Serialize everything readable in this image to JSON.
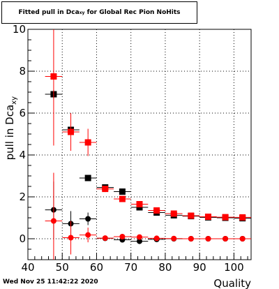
{
  "title": {
    "prefix": "Fitted pull in Dca",
    "subscript": "xy",
    "suffix": " for Global Rec Pion NoHits"
  },
  "timestamp": "Wed Nov 25 11:42:22 2020",
  "colors": {
    "series_black": "#000000",
    "series_red": "#ff0000",
    "grid": "#000000",
    "background": "#ffffff"
  },
  "chart_data": {
    "type": "scatter",
    "xlabel": "Quality",
    "ylabel_prefix": "pull in Dca",
    "ylabel_subscript": "xy",
    "xlim": [
      40,
      105
    ],
    "ylim": [
      -1,
      10
    ],
    "xticks": [
      40,
      50,
      60,
      70,
      80,
      90,
      100
    ],
    "yticks": [
      0,
      2,
      4,
      6,
      8,
      10
    ],
    "grid": true,
    "x_error": 2.5,
    "series": [
      {
        "color": "black",
        "marker": "square",
        "points": [
          {
            "x": 47.5,
            "y": 6.9,
            "yerr": 0.2
          },
          {
            "x": 52.5,
            "y": 5.2,
            "yerr": 0.15
          },
          {
            "x": 57.5,
            "y": 2.9,
            "yerr": 0.12
          },
          {
            "x": 62.5,
            "y": 2.45,
            "yerr": 0.1
          },
          {
            "x": 67.5,
            "y": 2.25,
            "yerr": 0.1
          },
          {
            "x": 72.5,
            "y": 1.5,
            "yerr": 0.08
          },
          {
            "x": 77.5,
            "y": 1.25,
            "yerr": 0.06
          },
          {
            "x": 82.5,
            "y": 1.12,
            "yerr": 0.05
          },
          {
            "x": 87.5,
            "y": 1.08,
            "yerr": 0.04
          },
          {
            "x": 92.5,
            "y": 1.02,
            "yerr": 0.04
          },
          {
            "x": 97.5,
            "y": 1.0,
            "yerr": 0.04
          },
          {
            "x": 102.5,
            "y": 0.98,
            "yerr": 0.04
          }
        ]
      },
      {
        "color": "red",
        "marker": "square",
        "points": [
          {
            "x": 47.5,
            "y": 7.75,
            "yerr": 3.3
          },
          {
            "x": 52.5,
            "y": 5.1,
            "yerr": 0.9
          },
          {
            "x": 57.5,
            "y": 4.6,
            "yerr": 0.65
          },
          {
            "x": 62.5,
            "y": 2.38,
            "yerr": 0.15
          },
          {
            "x": 67.5,
            "y": 1.9,
            "yerr": 0.1
          },
          {
            "x": 72.5,
            "y": 1.65,
            "yerr": 0.08
          },
          {
            "x": 77.5,
            "y": 1.35,
            "yerr": 0.06
          },
          {
            "x": 82.5,
            "y": 1.2,
            "yerr": 0.05
          },
          {
            "x": 87.5,
            "y": 1.1,
            "yerr": 0.04
          },
          {
            "x": 92.5,
            "y": 1.05,
            "yerr": 0.04
          },
          {
            "x": 97.5,
            "y": 1.03,
            "yerr": 0.04
          },
          {
            "x": 102.5,
            "y": 1.02,
            "yerr": 0.04
          }
        ]
      },
      {
        "color": "black",
        "marker": "circle",
        "points": [
          {
            "x": 47.5,
            "y": 1.38,
            "yerr": 1.35
          },
          {
            "x": 52.5,
            "y": 0.72,
            "yerr": 0.6
          },
          {
            "x": 57.5,
            "y": 0.95,
            "yerr": 0.3
          },
          {
            "x": 62.5,
            "y": 0.02,
            "yerr": 0.1
          },
          {
            "x": 67.5,
            "y": -0.05,
            "yerr": 0.08
          },
          {
            "x": 72.5,
            "y": -0.12,
            "yerr": 0.06
          },
          {
            "x": 77.5,
            "y": -0.03,
            "yerr": 0.04
          },
          {
            "x": 82.5,
            "y": 0.0,
            "yerr": 0.03
          },
          {
            "x": 87.5,
            "y": 0.0,
            "yerr": 0.03
          },
          {
            "x": 92.5,
            "y": 0.0,
            "yerr": 0.03
          },
          {
            "x": 97.5,
            "y": 0.0,
            "yerr": 0.03
          },
          {
            "x": 102.5,
            "y": 0.0,
            "yerr": 0.03
          }
        ]
      },
      {
        "color": "red",
        "marker": "circle",
        "points": [
          {
            "x": 47.5,
            "y": 0.85,
            "yerr": 2.3
          },
          {
            "x": 52.5,
            "y": 0.05,
            "yerr": 0.8
          },
          {
            "x": 57.5,
            "y": 0.18,
            "yerr": 0.35
          },
          {
            "x": 62.5,
            "y": 0.03,
            "yerr": 0.1
          },
          {
            "x": 67.5,
            "y": 0.1,
            "yerr": 0.08
          },
          {
            "x": 72.5,
            "y": 0.08,
            "yerr": 0.06
          },
          {
            "x": 77.5,
            "y": 0.02,
            "yerr": 0.04
          },
          {
            "x": 82.5,
            "y": 0.01,
            "yerr": 0.03
          },
          {
            "x": 87.5,
            "y": 0.0,
            "yerr": 0.03
          },
          {
            "x": 92.5,
            "y": 0.0,
            "yerr": 0.03
          },
          {
            "x": 97.5,
            "y": 0.0,
            "yerr": 0.03
          },
          {
            "x": 102.5,
            "y": 0.0,
            "yerr": 0.03
          }
        ]
      }
    ]
  }
}
